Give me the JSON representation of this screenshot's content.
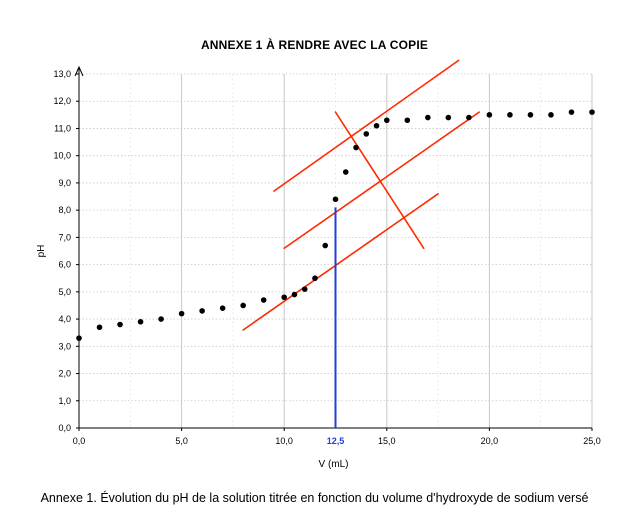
{
  "chart_data": {
    "type": "scatter",
    "title": "ANNEXE 1 À RENDRE AVEC LA COPIE",
    "caption": "Annexe 1. Évolution du pH de la solution titrée en fonction du volume d'hydroxyde de sodium versé",
    "xlabel": "V (mL)",
    "ylabel": "pH",
    "xlim": [
      0,
      25
    ],
    "ylim": [
      0,
      13
    ],
    "x_ticks": [
      "0,0",
      "5,0",
      "10,0",
      "15,0",
      "20,0",
      "25,0"
    ],
    "y_ticks": [
      "0,0",
      "1,0",
      "2,0",
      "3,0",
      "4,0",
      "5,0",
      "6,0",
      "7,0",
      "8,0",
      "9,0",
      "10,0",
      "11,0",
      "12,0",
      "13,0"
    ],
    "grid": true,
    "series": [
      {
        "values": [
          [
            0,
            3.3
          ],
          [
            1,
            3.7
          ],
          [
            2,
            3.8
          ],
          [
            3,
            3.9
          ],
          [
            4,
            4.0
          ],
          [
            5,
            4.2
          ],
          [
            6,
            4.3
          ],
          [
            7,
            4.4
          ],
          [
            8,
            4.5
          ],
          [
            9,
            4.7
          ],
          [
            10,
            4.8
          ],
          [
            10.5,
            4.9
          ],
          [
            11,
            5.1
          ],
          [
            11.5,
            5.5
          ],
          [
            12,
            6.7
          ],
          [
            12.5,
            8.4
          ],
          [
            13,
            9.4
          ],
          [
            13.5,
            10.3
          ],
          [
            14,
            10.8
          ],
          [
            14.5,
            11.1
          ],
          [
            15,
            11.3
          ],
          [
            16,
            11.3
          ],
          [
            17,
            11.4
          ],
          [
            18,
            11.4
          ],
          [
            19,
            11.4
          ],
          [
            20,
            11.5
          ],
          [
            21,
            11.5
          ],
          [
            22,
            11.5
          ],
          [
            23,
            11.5
          ],
          [
            24,
            11.6
          ],
          [
            25,
            11.6
          ]
        ]
      }
    ],
    "tangent_lines": [
      {
        "x": [
          9.5,
          18.5
        ],
        "y": [
          8.7,
          13.5
        ]
      },
      {
        "x": [
          10,
          19.5
        ],
        "y": [
          6.6,
          11.6
        ]
      },
      {
        "x": [
          8,
          17.5
        ],
        "y": [
          3.6,
          8.6
        ]
      },
      {
        "x": [
          12.5,
          16.8
        ],
        "y": [
          11.6,
          6.6
        ]
      }
    ],
    "equivalence": {
      "x": 12.5,
      "y": 8.1,
      "label": "12,5"
    },
    "colors": {
      "points": "#000000",
      "tangents": "#ff2a00",
      "equivalence": "#1f3fd6",
      "grid": "#c8c8c8"
    }
  }
}
